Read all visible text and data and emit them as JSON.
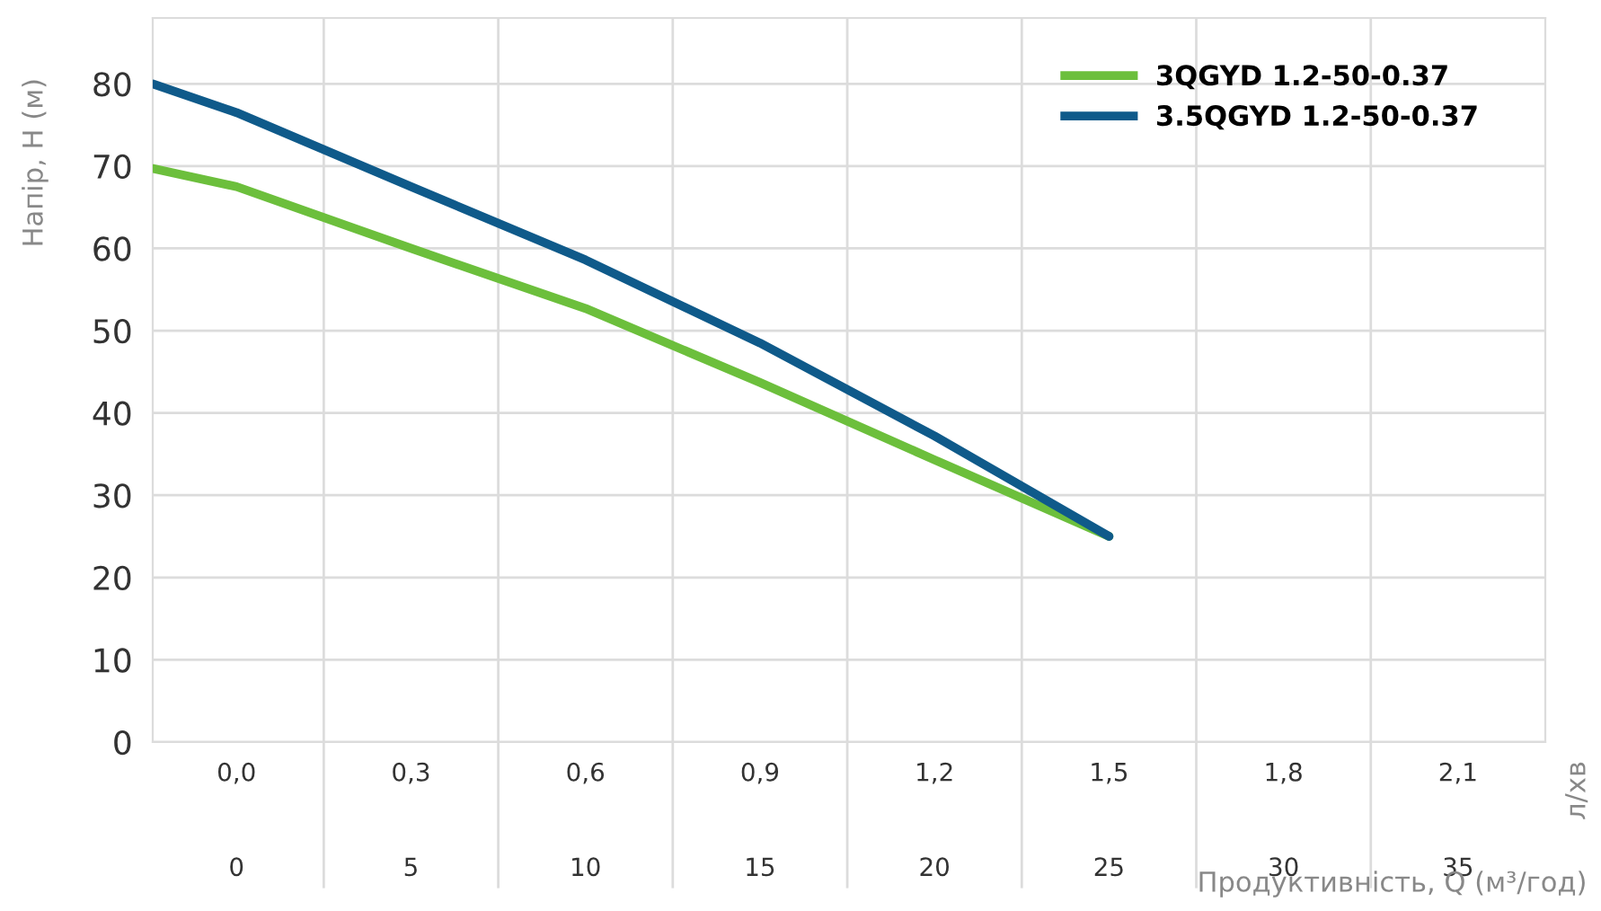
{
  "chart_data": {
    "type": "line",
    "ylabel": "Напір, H (м)",
    "xlabel": "Продуктивність, Q (м³/год)",
    "annotations": [
      "л/хв"
    ],
    "series": [
      {
        "name": "3QGYD 1.2-50-0.37",
        "color": "#6cbf3c",
        "x": [
          -2.4,
          0,
          5,
          10,
          15,
          20,
          25
        ],
        "values": [
          69.7,
          67.5,
          60,
          52.7,
          43.7,
          34.3,
          25
        ]
      },
      {
        "name": "3.5QGYD 1.2-50-0.37",
        "color": "#0f5a8a",
        "x": [
          -2.4,
          0,
          5,
          10,
          15,
          20,
          25
        ],
        "values": [
          80,
          76.5,
          67.5,
          58.6,
          48.5,
          37.2,
          25
        ]
      }
    ],
    "xlim": [
      -2.4,
      37.5
    ],
    "xticks": [
      0,
      5,
      10,
      15,
      20,
      25,
      30,
      35
    ],
    "x2lim": [
      -0.144,
      2.25
    ],
    "x2ticks": [
      {
        "value": 0,
        "label": "0,0"
      },
      {
        "value": 0.3,
        "label": "0,3"
      },
      {
        "value": 0.6,
        "label": "0,6"
      },
      {
        "value": 0.9,
        "label": "0,9"
      },
      {
        "value": 1.2,
        "label": "1,2"
      },
      {
        "value": 1.5,
        "label": "1,5"
      },
      {
        "value": 1.8,
        "label": "1,8"
      },
      {
        "value": 2.1,
        "label": "2,1"
      }
    ],
    "ylim": [
      0,
      88
    ],
    "yticks": [
      0,
      10,
      20,
      30,
      40,
      50,
      60,
      70,
      80
    ],
    "grid": true,
    "legend": "top right",
    "marker": "none",
    "line_style": "solid"
  }
}
